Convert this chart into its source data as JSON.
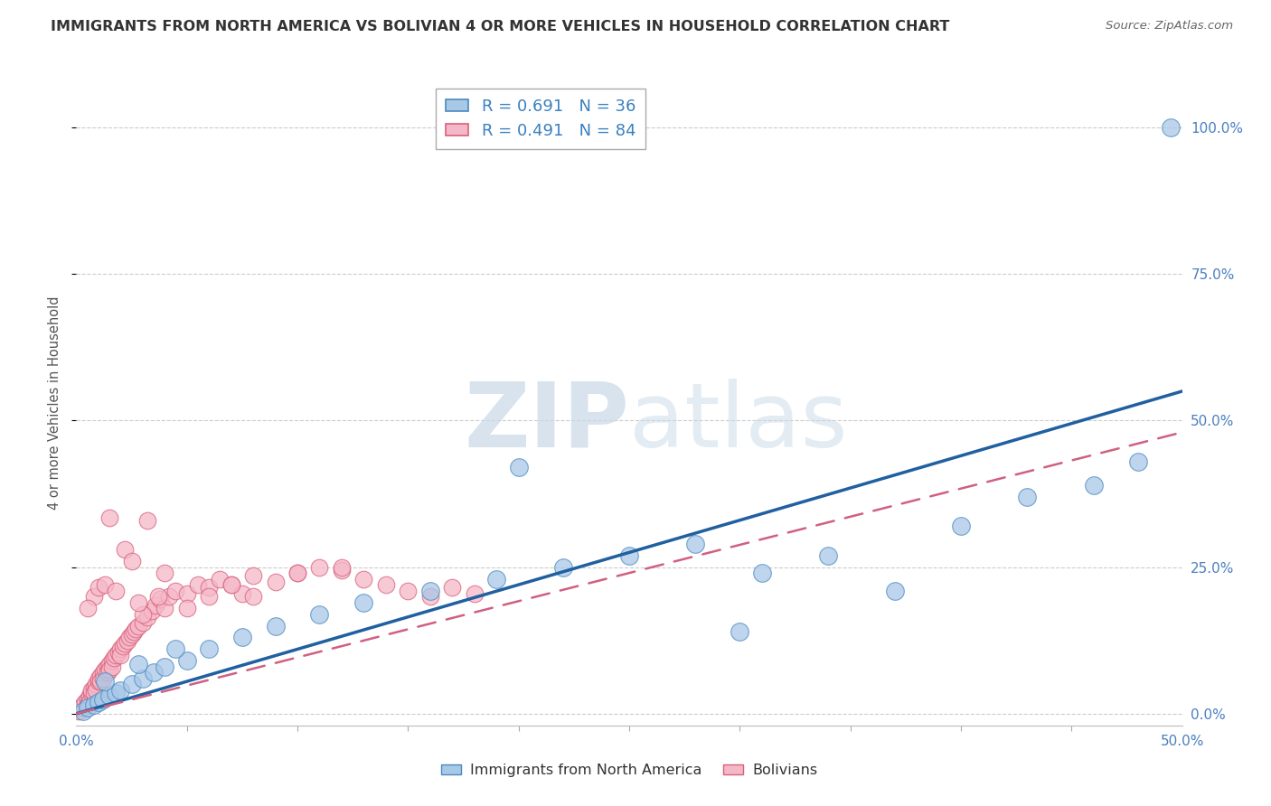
{
  "title": "IMMIGRANTS FROM NORTH AMERICA VS BOLIVIAN 4 OR MORE VEHICLES IN HOUSEHOLD CORRELATION CHART",
  "source": "Source: ZipAtlas.com",
  "ylabel": "4 or more Vehicles in Household",
  "xlim": [
    0.0,
    50.0
  ],
  "ylim": [
    -2.0,
    108.0
  ],
  "ytick_values": [
    0.0,
    25.0,
    50.0,
    75.0,
    100.0
  ],
  "legend1_r": "0.691",
  "legend1_n": "36",
  "legend2_r": "0.491",
  "legend2_n": "84",
  "color_blue_fill": "#a8c8e8",
  "color_blue_edge": "#4a8abf",
  "color_pink_fill": "#f5b8c8",
  "color_pink_edge": "#d9607a",
  "color_blue_line": "#2060a0",
  "color_pink_line": "#d06080",
  "watermark_color": "#d8e4f0",
  "blue_line_x0": 0.0,
  "blue_line_y0": 0.0,
  "blue_line_x1": 50.0,
  "blue_line_y1": 55.0,
  "pink_line_x0": 0.0,
  "pink_line_y0": 0.0,
  "pink_line_x1": 50.0,
  "pink_line_y1": 48.0,
  "blue_x": [
    0.3,
    0.5,
    0.8,
    1.0,
    1.2,
    1.5,
    1.8,
    2.0,
    2.5,
    3.0,
    3.5,
    4.0,
    5.0,
    6.0,
    7.5,
    9.0,
    11.0,
    13.0,
    16.0,
    19.0,
    22.0,
    25.0,
    28.0,
    31.0,
    34.0,
    37.0,
    40.0,
    43.0,
    46.0,
    48.0,
    49.5,
    1.3,
    2.8,
    4.5,
    20.0,
    30.0
  ],
  "blue_y": [
    0.5,
    1.0,
    1.5,
    2.0,
    2.5,
    3.0,
    3.5,
    4.0,
    5.0,
    6.0,
    7.0,
    8.0,
    9.0,
    11.0,
    13.0,
    15.0,
    17.0,
    19.0,
    21.0,
    23.0,
    25.0,
    27.0,
    29.0,
    24.0,
    27.0,
    21.0,
    32.0,
    37.0,
    39.0,
    43.0,
    100.0,
    5.5,
    8.5,
    11.0,
    42.0,
    14.0
  ],
  "pink_x": [
    0.1,
    0.2,
    0.3,
    0.4,
    0.5,
    0.5,
    0.6,
    0.6,
    0.7,
    0.7,
    0.8,
    0.8,
    0.9,
    0.9,
    1.0,
    1.0,
    1.1,
    1.1,
    1.2,
    1.2,
    1.3,
    1.4,
    1.4,
    1.5,
    1.5,
    1.6,
    1.6,
    1.7,
    1.8,
    1.9,
    2.0,
    2.0,
    2.1,
    2.2,
    2.3,
    2.4,
    2.5,
    2.6,
    2.7,
    2.8,
    3.0,
    3.2,
    3.4,
    3.6,
    3.8,
    4.0,
    4.2,
    4.5,
    5.0,
    5.5,
    6.0,
    6.5,
    7.0,
    7.5,
    8.0,
    9.0,
    10.0,
    11.0,
    12.0,
    13.0,
    14.0,
    15.0,
    16.0,
    17.0,
    18.0,
    1.5,
    3.2,
    2.2,
    0.8,
    1.0,
    1.3,
    2.5,
    4.0,
    6.0,
    3.0,
    5.0,
    7.0,
    8.0,
    10.0,
    12.0,
    2.8,
    3.7,
    1.8,
    0.5
  ],
  "pink_y": [
    0.5,
    1.0,
    1.5,
    2.0,
    2.5,
    1.5,
    3.0,
    2.0,
    3.5,
    4.0,
    4.5,
    3.5,
    5.0,
    4.0,
    5.5,
    6.0,
    6.5,
    5.5,
    7.0,
    6.0,
    7.5,
    8.0,
    7.0,
    8.5,
    7.5,
    9.0,
    8.0,
    9.5,
    10.0,
    10.5,
    11.0,
    10.0,
    11.5,
    12.0,
    12.5,
    13.0,
    13.5,
    14.0,
    14.5,
    15.0,
    15.5,
    16.5,
    17.5,
    18.5,
    19.5,
    18.0,
    20.0,
    21.0,
    20.5,
    22.0,
    21.5,
    23.0,
    22.0,
    20.5,
    23.5,
    22.5,
    24.0,
    25.0,
    24.5,
    23.0,
    22.0,
    21.0,
    20.0,
    21.5,
    20.5,
    33.5,
    33.0,
    28.0,
    20.0,
    21.5,
    22.0,
    26.0,
    24.0,
    20.0,
    17.0,
    18.0,
    22.0,
    20.0,
    24.0,
    25.0,
    19.0,
    20.0,
    21.0,
    18.0
  ]
}
